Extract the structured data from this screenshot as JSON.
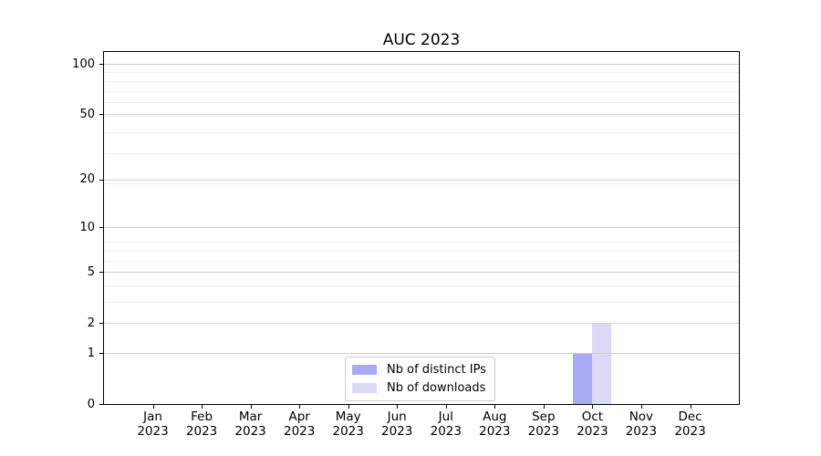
{
  "chart_data": {
    "type": "bar",
    "title": "AUC 2023",
    "months": [
      "Jan",
      "Feb",
      "Mar",
      "Apr",
      "May",
      "Jun",
      "Jul",
      "Aug",
      "Sep",
      "Oct",
      "Nov",
      "Dec"
    ],
    "year": "2023",
    "series": [
      {
        "name": "Nb of distinct IPs",
        "color": "#aaaaf4",
        "values": [
          0,
          0,
          0,
          0,
          0,
          0,
          0,
          0,
          0,
          1,
          0,
          0
        ]
      },
      {
        "name": "Nb of downloads",
        "color": "#dadaf8",
        "values": [
          0,
          0,
          0,
          0,
          0,
          0,
          0,
          0,
          0,
          2,
          0,
          0
        ]
      }
    ],
    "yscale": "log10(1+y)",
    "yticks": [
      0,
      1,
      2,
      5,
      10,
      20,
      50,
      100
    ],
    "minor_yticks": [
      3,
      4,
      6,
      7,
      8,
      19,
      29,
      39,
      49,
      59,
      69,
      79,
      89
    ],
    "ylim": [
      0,
      117.6
    ],
    "xlabel": "",
    "ylabel": "",
    "grid": "horizontal",
    "legend_position": "lower center"
  },
  "colors": {
    "grid_major": "#cfcfcf",
    "grid_minor": "#efefef",
    "spine": "#000000",
    "background": "#ffffff",
    "legend_border": "#cccccc",
    "text": "#000000"
  }
}
